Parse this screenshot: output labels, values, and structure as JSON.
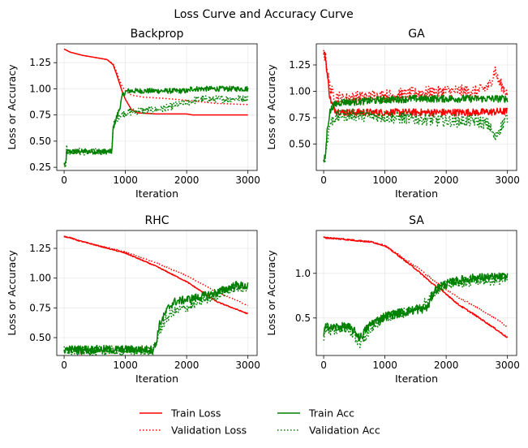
{
  "figure": {
    "title": "Loss Curve and Accuracy Curve",
    "legend": [
      {
        "label": "Train Loss",
        "color": "#ff0000",
        "style": "solid"
      },
      {
        "label": "Validation Loss",
        "color": "#ff0000",
        "style": "dotted"
      },
      {
        "label": "Train Acc",
        "color": "#008000",
        "style": "solid"
      },
      {
        "label": "Validation Acc",
        "color": "#008000",
        "style": "dotted"
      }
    ]
  },
  "chart_data": [
    {
      "type": "line",
      "title": "Backprop",
      "xlabel": "Iteration",
      "ylabel": "Loss or Accuracy",
      "xlim": [
        -120,
        3150
      ],
      "ylim": [
        0.22,
        1.43
      ],
      "xticks": [
        0,
        1000,
        2000,
        3000
      ],
      "yticks": [
        0.25,
        0.5,
        0.75,
        1.0,
        1.25
      ],
      "ytick_labels": [
        "0.25",
        "0.50",
        "0.75",
        "1.00",
        "1.25"
      ],
      "grid": true,
      "series": [
        {
          "name": "Train Loss",
          "color": "#ff0000",
          "style": "solid",
          "noise": 0,
          "x": [
            0,
            100,
            300,
            500,
            700,
            800,
            850,
            900,
            950,
            1000,
            1100,
            1200,
            1500,
            2000,
            2100,
            2500,
            3000
          ],
          "y": [
            1.38,
            1.35,
            1.32,
            1.3,
            1.28,
            1.23,
            1.15,
            1.06,
            0.97,
            0.9,
            0.8,
            0.77,
            0.76,
            0.76,
            0.75,
            0.75,
            0.75
          ]
        },
        {
          "name": "Validation Loss",
          "color": "#ff0000",
          "style": "dotted",
          "noise": 0,
          "x": [
            0,
            100,
            300,
            500,
            700,
            800,
            850,
            900,
            950,
            1000,
            1100,
            1300,
            1600,
            2000,
            2500,
            3000
          ],
          "y": [
            1.38,
            1.35,
            1.32,
            1.3,
            1.28,
            1.24,
            1.17,
            1.09,
            1.02,
            0.98,
            0.94,
            0.92,
            0.91,
            0.89,
            0.86,
            0.85
          ]
        },
        {
          "name": "Train Acc",
          "color": "#008000",
          "style": "solid",
          "noise": 0.025,
          "x": [
            0,
            30,
            40,
            50,
            780,
            800,
            850,
            900,
            950,
            1000,
            1050,
            2050,
            2060,
            3000
          ],
          "y": [
            0.28,
            0.28,
            0.4,
            0.4,
            0.4,
            0.62,
            0.72,
            0.8,
            0.93,
            0.97,
            0.98,
            0.98,
            1.0,
            1.0
          ]
        },
        {
          "name": "Validation Acc",
          "color": "#008000",
          "style": "dotted",
          "noise": 0.035,
          "x": [
            0,
            30,
            40,
            50,
            780,
            800,
            900,
            1000,
            1200,
            1500,
            1700,
            2000,
            2200,
            2500,
            3000
          ],
          "y": [
            0.28,
            0.28,
            0.45,
            0.4,
            0.4,
            0.65,
            0.75,
            0.77,
            0.79,
            0.8,
            0.82,
            0.87,
            0.9,
            0.9,
            0.91
          ]
        }
      ]
    },
    {
      "type": "line",
      "title": "GA",
      "xlabel": "Iteration",
      "ylabel": "Loss or Accuracy",
      "xlim": [
        -120,
        3150
      ],
      "ylim": [
        0.25,
        1.45
      ],
      "xticks": [
        0,
        1000,
        2000,
        3000
      ],
      "yticks": [
        0.5,
        0.75,
        1.0,
        1.25
      ],
      "ytick_labels": [
        "0.50",
        "0.75",
        "1.00",
        "1.25"
      ],
      "grid": true,
      "series": [
        {
          "name": "Train Loss",
          "color": "#ff0000",
          "style": "solid",
          "noise": 0.035,
          "x": [
            0,
            30,
            60,
            100,
            150,
            200,
            300,
            500,
            1000,
            1500,
            2000,
            2500,
            3000
          ],
          "y": [
            1.37,
            1.32,
            1.15,
            0.95,
            0.85,
            0.82,
            0.8,
            0.8,
            0.8,
            0.8,
            0.8,
            0.8,
            0.81
          ]
        },
        {
          "name": "Validation Loss",
          "color": "#ff0000",
          "style": "dotted",
          "noise": 0.06,
          "x": [
            0,
            30,
            60,
            100,
            150,
            300,
            500,
            1000,
            1500,
            2000,
            2500,
            2700,
            2800,
            2850,
            2950,
            3000
          ],
          "y": [
            1.37,
            1.32,
            1.2,
            1.05,
            0.97,
            0.93,
            0.94,
            0.96,
            0.98,
            1.0,
            1.0,
            1.05,
            1.2,
            1.1,
            1.02,
            0.98
          ]
        },
        {
          "name": "Train Acc",
          "color": "#008000",
          "style": "solid",
          "noise": 0.035,
          "x": [
            0,
            30,
            60,
            100,
            150,
            200,
            300,
            500,
            1000,
            1500,
            2000,
            2500,
            3000
          ],
          "y": [
            0.32,
            0.4,
            0.65,
            0.8,
            0.86,
            0.88,
            0.9,
            0.9,
            0.92,
            0.93,
            0.93,
            0.93,
            0.93
          ]
        },
        {
          "name": "Validation Acc",
          "color": "#008000",
          "style": "dotted",
          "noise": 0.06,
          "x": [
            0,
            30,
            60,
            100,
            150,
            300,
            500,
            1000,
            1500,
            2000,
            2500,
            2700,
            2800,
            2850,
            2950,
            3000
          ],
          "y": [
            0.32,
            0.38,
            0.55,
            0.68,
            0.74,
            0.78,
            0.78,
            0.76,
            0.74,
            0.72,
            0.72,
            0.68,
            0.55,
            0.62,
            0.72,
            0.75
          ]
        }
      ]
    },
    {
      "type": "line",
      "title": "RHC",
      "xlabel": "Iteration",
      "ylabel": "Loss or Accuracy",
      "xlim": [
        -120,
        3150
      ],
      "ylim": [
        0.35,
        1.4
      ],
      "xticks": [
        0,
        1000,
        2000,
        3000
      ],
      "yticks": [
        0.5,
        0.75,
        1.0,
        1.25
      ],
      "ytick_labels": [
        "0.50",
        "0.75",
        "1.00",
        "1.25"
      ],
      "grid": true,
      "series": [
        {
          "name": "Train Loss",
          "color": "#ff0000",
          "style": "solid",
          "noise": 0.004,
          "x": [
            0,
            100,
            200,
            500,
            1000,
            1500,
            2000,
            2500,
            3000
          ],
          "y": [
            1.35,
            1.34,
            1.32,
            1.28,
            1.21,
            1.1,
            0.97,
            0.8,
            0.7
          ]
        },
        {
          "name": "Validation Loss",
          "color": "#ff0000",
          "style": "dotted",
          "noise": 0.004,
          "x": [
            0,
            100,
            200,
            500,
            1000,
            1500,
            2000,
            2500,
            3000
          ],
          "y": [
            1.35,
            1.34,
            1.32,
            1.28,
            1.22,
            1.13,
            1.02,
            0.88,
            0.77
          ]
        },
        {
          "name": "Train Acc",
          "color": "#008000",
          "style": "solid",
          "noise": 0.035,
          "x": [
            0,
            1450,
            1500,
            1550,
            1600,
            1700,
            1800,
            2000,
            2200,
            2500,
            2700,
            2800,
            3000
          ],
          "y": [
            0.4,
            0.4,
            0.45,
            0.6,
            0.65,
            0.75,
            0.8,
            0.82,
            0.84,
            0.88,
            0.92,
            0.94,
            0.93
          ]
        },
        {
          "name": "Validation Acc",
          "color": "#008000",
          "style": "dotted",
          "noise": 0.04,
          "x": [
            0,
            1450,
            1500,
            1550,
            1600,
            1700,
            1800,
            2000,
            2200,
            2500,
            2700,
            2800,
            3000
          ],
          "y": [
            0.39,
            0.39,
            0.43,
            0.55,
            0.6,
            0.68,
            0.72,
            0.75,
            0.8,
            0.86,
            0.9,
            0.92,
            0.91
          ]
        }
      ]
    },
    {
      "type": "line",
      "title": "SA",
      "xlabel": "Iteration",
      "ylabel": "Loss or Accuracy",
      "xlim": [
        -120,
        3150
      ],
      "ylim": [
        0.08,
        1.48
      ],
      "xticks": [
        0,
        1000,
        2000,
        3000
      ],
      "yticks": [
        0.5,
        1.0
      ],
      "ytick_labels": [
        "0.5",
        "1.0"
      ],
      "grid": true,
      "series": [
        {
          "name": "Train Loss",
          "color": "#ff0000",
          "style": "solid",
          "noise": 0.008,
          "x": [
            0,
            200,
            500,
            800,
            1000,
            1200,
            1500,
            1800,
            2000,
            2200,
            2500,
            2800,
            3000
          ],
          "y": [
            1.4,
            1.39,
            1.37,
            1.35,
            1.31,
            1.21,
            1.05,
            0.87,
            0.77,
            0.65,
            0.52,
            0.38,
            0.28
          ]
        },
        {
          "name": "Validation Loss",
          "color": "#ff0000",
          "style": "dotted",
          "noise": 0.008,
          "x": [
            0,
            200,
            500,
            800,
            1000,
            1200,
            1500,
            1800,
            2000,
            2200,
            2500,
            2800,
            3000
          ],
          "y": [
            1.4,
            1.39,
            1.37,
            1.35,
            1.31,
            1.22,
            1.08,
            0.92,
            0.82,
            0.73,
            0.62,
            0.5,
            0.4
          ]
        },
        {
          "name": "Train Acc",
          "color": "#008000",
          "style": "solid",
          "noise": 0.05,
          "x": [
            0,
            50,
            100,
            200,
            400,
            500,
            600,
            700,
            800,
            900,
            1000,
            1200,
            1400,
            1600,
            1700,
            1800,
            1900,
            2000,
            2200,
            2500,
            3000
          ],
          "y": [
            0.3,
            0.45,
            0.38,
            0.4,
            0.4,
            0.35,
            0.28,
            0.38,
            0.45,
            0.48,
            0.52,
            0.55,
            0.58,
            0.6,
            0.62,
            0.8,
            0.85,
            0.88,
            0.92,
            0.95,
            0.96
          ]
        },
        {
          "name": "Validation Acc",
          "color": "#008000",
          "style": "dotted",
          "noise": 0.06,
          "x": [
            0,
            50,
            100,
            200,
            400,
            500,
            600,
            700,
            800,
            900,
            1000,
            1200,
            1400,
            1600,
            1700,
            1800,
            1900,
            2000,
            2200,
            2500,
            3000
          ],
          "y": [
            0.3,
            0.4,
            0.35,
            0.38,
            0.38,
            0.3,
            0.22,
            0.3,
            0.4,
            0.45,
            0.5,
            0.55,
            0.58,
            0.62,
            0.7,
            0.78,
            0.85,
            0.88,
            0.9,
            0.92,
            0.93
          ]
        }
      ]
    }
  ]
}
